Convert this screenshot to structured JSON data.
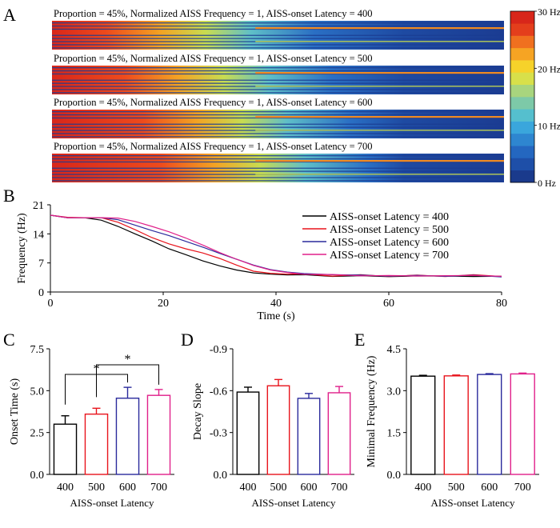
{
  "panel_letters": [
    "A",
    "B",
    "C",
    "D",
    "E"
  ],
  "colors": {
    "lat400": "#000000",
    "lat500": "#e8141c",
    "lat600": "#2a2a9c",
    "lat700": "#e0208a",
    "heat_low": "#1c3f94",
    "heat_high": "#e0261c"
  },
  "chart_data": [
    {
      "panel": "A",
      "type": "heatmap",
      "rows": [
        {
          "title": "Proportion = 45%, Normalized AISS Frequency = 1, AISS-onset Latency = 400",
          "latency": 400
        },
        {
          "title": "Proportion = 45%, Normalized AISS Frequency = 1, AISS-onset Latency = 500",
          "latency": 500
        },
        {
          "title": "Proportion = 45%, Normalized AISS Frequency = 1, AISS-onset Latency = 600",
          "latency": 600
        },
        {
          "title": "Proportion = 45%, Normalized AISS Frequency = 1, AISS-onset Latency = 700",
          "latency": 700
        }
      ],
      "colorbar_ticks": [
        "30 Hz",
        "20 Hz",
        "10 Hz",
        "0 Hz"
      ],
      "colorbar_range": [
        0,
        30
      ],
      "colorbar_colors": [
        "#1a3a8c",
        "#1e4fa8",
        "#2467c0",
        "#2e86d0",
        "#3aa6dc",
        "#55bfce",
        "#7dc9a8",
        "#a8d57e",
        "#d8e04a",
        "#f6d22a",
        "#f6a423",
        "#f0701f",
        "#e43e1c",
        "#d8261a"
      ]
    },
    {
      "panel": "B",
      "type": "line",
      "title": "",
      "xlabel": "Time (s)",
      "ylabel": "Frequency (Hz)",
      "xlim": [
        0,
        80
      ],
      "ylim": [
        0,
        21
      ],
      "xticks": [
        0,
        20,
        40,
        60,
        80
      ],
      "yticks": [
        0,
        7,
        14,
        21
      ],
      "series": [
        {
          "name": "AISS-onset Latency = 400",
          "color": "#000000",
          "x": [
            0,
            3,
            6,
            9,
            12,
            15,
            18,
            21,
            24,
            27,
            30,
            33,
            36,
            39,
            42,
            45,
            50,
            55,
            60,
            65,
            70,
            75,
            80
          ],
          "y": [
            18.5,
            17.9,
            17.9,
            17.3,
            15.8,
            14.0,
            12.3,
            10.4,
            9.0,
            7.5,
            6.3,
            5.3,
            4.6,
            4.3,
            4.1,
            4.0,
            3.9,
            3.8,
            3.8,
            3.8,
            3.9,
            3.7,
            3.8
          ]
        },
        {
          "name": "AISS-onset Latency = 500",
          "color": "#e8141c",
          "x": [
            0,
            3,
            6,
            9,
            12,
            15,
            18,
            21,
            24,
            27,
            30,
            33,
            36,
            39,
            42,
            45,
            50,
            55,
            60,
            65,
            70,
            75,
            80
          ],
          "y": [
            18.5,
            18.0,
            17.9,
            17.9,
            16.8,
            15.0,
            13.1,
            11.6,
            10.4,
            9.4,
            8.1,
            6.5,
            5.0,
            4.5,
            4.3,
            4.2,
            4.0,
            4.0,
            3.9,
            3.9,
            3.9,
            4.0,
            3.9
          ]
        },
        {
          "name": "AISS-onset Latency = 600",
          "color": "#2a2a9c",
          "x": [
            0,
            3,
            6,
            9,
            12,
            15,
            18,
            21,
            24,
            27,
            30,
            33,
            36,
            39,
            42,
            45,
            50,
            55,
            60,
            65,
            70,
            75,
            80
          ],
          "y": [
            18.5,
            17.9,
            17.9,
            17.9,
            17.4,
            16.1,
            14.8,
            13.6,
            12.2,
            10.8,
            9.3,
            7.9,
            6.5,
            5.4,
            4.8,
            4.4,
            4.2,
            4.0,
            3.9,
            3.9,
            3.9,
            3.9,
            3.8
          ]
        },
        {
          "name": "AISS-onset Latency = 700",
          "color": "#e0208a",
          "x": [
            0,
            3,
            6,
            9,
            12,
            15,
            18,
            21,
            24,
            27,
            30,
            33,
            36,
            39,
            42,
            45,
            50,
            55,
            60,
            65,
            70,
            75,
            80
          ],
          "y": [
            18.5,
            17.9,
            17.9,
            17.9,
            17.8,
            17.0,
            15.8,
            14.5,
            13.0,
            11.3,
            9.5,
            7.9,
            6.4,
            5.3,
            4.7,
            4.4,
            4.1,
            4.0,
            3.9,
            3.9,
            3.9,
            4.0,
            3.8
          ]
        }
      ],
      "legend": "top-right"
    },
    {
      "panel": "C",
      "type": "bar",
      "ylabel": "Onset Time (s)",
      "xlabel": "AISS-onset Latency",
      "categories": [
        "400",
        "500",
        "600",
        "700"
      ],
      "values": [
        3.0,
        3.6,
        4.55,
        4.72
      ],
      "errors": [
        0.5,
        0.35,
        0.65,
        0.35
      ],
      "ylim": [
        0,
        7.5
      ],
      "yticks": [
        "0.0",
        "2.5",
        "5.0",
        "7.5"
      ],
      "significance": [
        {
          "from": 0,
          "to": 2,
          "label": "*"
        },
        {
          "from": 1,
          "to": 3,
          "label": "*"
        }
      ]
    },
    {
      "panel": "D",
      "type": "bar",
      "ylabel": "Decay Slope",
      "xlabel": "AISS-onset Latency",
      "categories": [
        "400",
        "500",
        "600",
        "700"
      ],
      "values": [
        -0.59,
        -0.635,
        -0.545,
        -0.585
      ],
      "errors": [
        0.035,
        0.045,
        0.035,
        0.045
      ],
      "ylim": [
        0,
        -0.9
      ],
      "yticks": [
        "0.0",
        "-0.3",
        "-0.6",
        "-0.9"
      ]
    },
    {
      "panel": "E",
      "type": "bar",
      "ylabel": "Minimal Frequency (Hz)",
      "xlabel": "AISS-onset Latency",
      "categories": [
        "400",
        "500",
        "600",
        "700"
      ],
      "values": [
        3.52,
        3.53,
        3.58,
        3.6
      ],
      "errors": [
        0.03,
        0.03,
        0.03,
        0.03
      ],
      "ylim": [
        0,
        4.5
      ],
      "yticks": [
        "0.0",
        "1.5",
        "3.0",
        "4.5"
      ]
    }
  ]
}
